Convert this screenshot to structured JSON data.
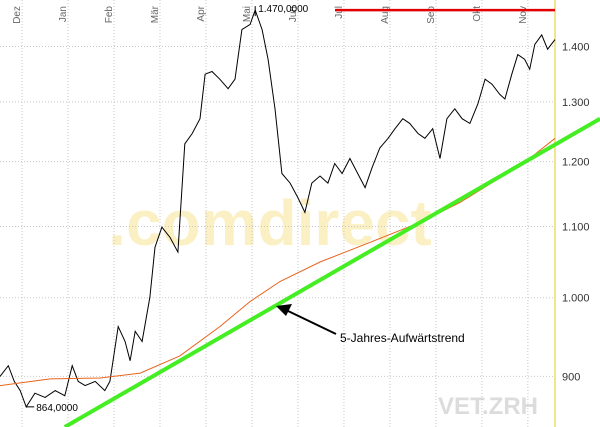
{
  "chart_data": {
    "type": "line",
    "ylog": true,
    "grid": true,
    "xlim": [
      -0.48,
      11.59
    ],
    "xticks": [
      {
        "value": 0,
        "label": "Dez"
      },
      {
        "value": 1,
        "label": "Jan"
      },
      {
        "value": 2,
        "label": "Feb"
      },
      {
        "value": 3,
        "label": "Mär"
      },
      {
        "value": 4,
        "label": "Apr"
      },
      {
        "value": 5,
        "label": "Mai"
      },
      {
        "value": 6,
        "label": "Jun"
      },
      {
        "value": 7,
        "label": "Jul"
      },
      {
        "value": 8,
        "label": "Aug"
      },
      {
        "value": 9,
        "label": "Sep"
      },
      {
        "value": 10,
        "label": "Okt"
      },
      {
        "value": 11,
        "label": "Nov"
      }
    ],
    "ylim": [
      841,
      1490
    ],
    "yticks": [
      900,
      {
        "value": 1000,
        "label": "1.000"
      },
      {
        "value": 1100,
        "label": "1.100"
      },
      {
        "value": 1200,
        "label": "1.200"
      },
      {
        "value": 1300,
        "label": "1.300"
      },
      {
        "value": 1400,
        "label": "1.400"
      }
    ],
    "series": [
      {
        "color": "#000000",
        "x": [
          -0.48,
          -0.3,
          -0.17,
          -0.04,
          0.09,
          0.28,
          0.5,
          0.72,
          0.93,
          1.09,
          1.22,
          1.37,
          1.59,
          1.8,
          1.91,
          2.09,
          2.24,
          2.35,
          2.46,
          2.61,
          2.78,
          2.89,
          3.04,
          3.22,
          3.39,
          3.54,
          3.7,
          3.87,
          3.98,
          4.13,
          4.3,
          4.48,
          4.63,
          4.78,
          4.96,
          5.07,
          5.22,
          5.35,
          5.5,
          5.65,
          5.83,
          6.0,
          6.15,
          6.3,
          6.48,
          6.65,
          6.8,
          6.96,
          7.13,
          7.3,
          7.46,
          7.61,
          7.78,
          7.96,
          8.11,
          8.28,
          8.43,
          8.61,
          8.76,
          8.93,
          9.09,
          9.24,
          9.41,
          9.57,
          9.74,
          9.91,
          10.07,
          10.22,
          10.39,
          10.5,
          10.65,
          10.78,
          10.93,
          11.04,
          11.15,
          11.3,
          11.43,
          11.59
        ],
        "values": [
          900,
          913,
          894,
          883,
          864,
          880,
          875,
          883,
          877,
          913,
          894,
          889,
          894,
          883,
          894,
          962,
          943,
          919,
          956,
          943,
          1001,
          1070,
          1099,
          1084,
          1063,
          1229,
          1246,
          1271,
          1349,
          1354,
          1340,
          1323,
          1340,
          1432,
          1442,
          1470,
          1432,
          1376,
          1288,
          1181,
          1166,
          1143,
          1121,
          1166,
          1177,
          1166,
          1197,
          1181,
          1205,
          1181,
          1159,
          1190,
          1222,
          1238,
          1254,
          1271,
          1263,
          1246,
          1238,
          1254,
          1205,
          1271,
          1288,
          1271,
          1263,
          1296,
          1340,
          1331,
          1313,
          1305,
          1349,
          1385,
          1376,
          1358,
          1404,
          1422,
          1395,
          1413
        ]
      },
      {
        "color": "#e8641e",
        "x": [
          -0.48,
          0.61,
          1.7,
          2.57,
          3.43,
          4.3,
          4.96,
          5.61,
          6.48,
          7.57,
          8.65,
          9.52,
          10.39,
          11.04,
          11.59
        ],
        "values": [
          889,
          897,
          898,
          904,
          925,
          962,
          995,
          1022,
          1049,
          1077,
          1106,
          1136,
          1174,
          1205,
          1238
        ]
      },
      {
        "color": "#44ee22",
        "x": [
          0.93,
          12.57
        ],
        "values": [
          841,
          1271
        ]
      }
    ],
    "annotations": [
      {
        "text": "1.470,0000",
        "x": 5.07,
        "value": 1470
      },
      {
        "text": "864,0000",
        "x": 0.09,
        "value": 864
      },
      {
        "text": "5-Jahres-Aufwärtstrend"
      }
    ],
    "watermark": ".comdirect",
    "symbol": "VET.ZRH"
  }
}
